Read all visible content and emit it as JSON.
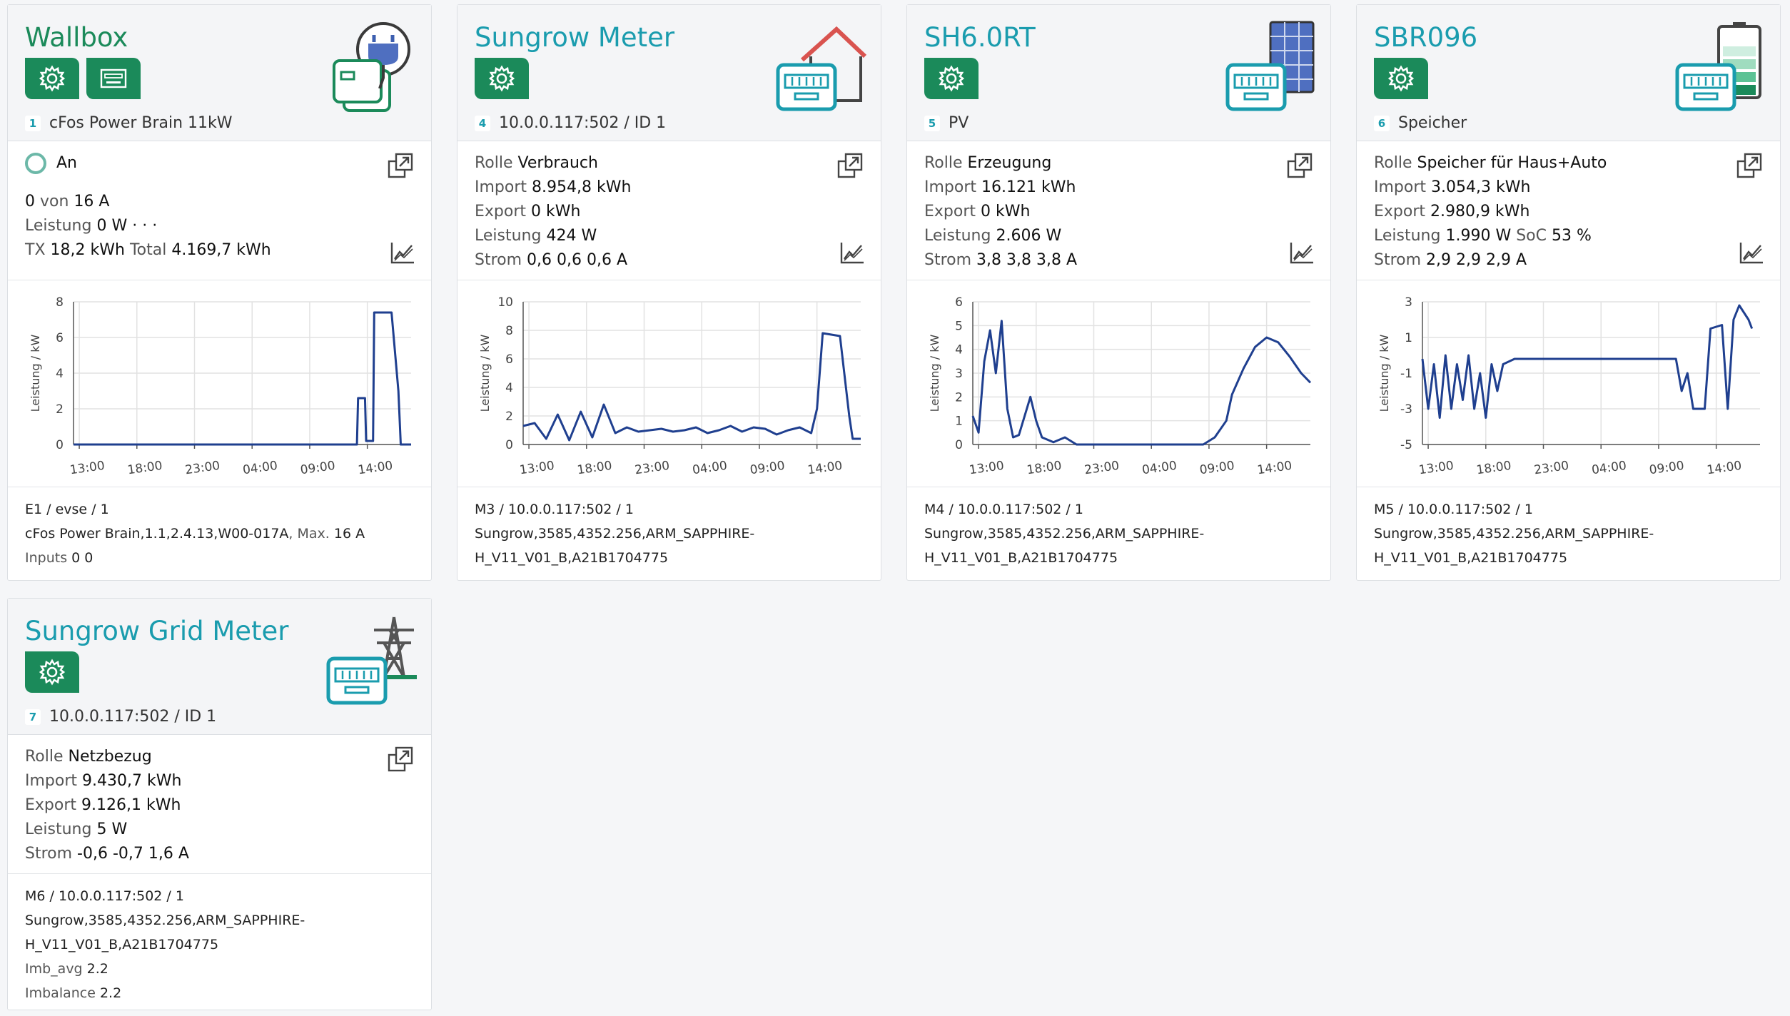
{
  "colors": {
    "teal": "#1a9cae",
    "green": "#1b8a5a",
    "line": "#1f3f8f",
    "red": "#d9534f"
  },
  "cards": [
    {
      "title": "Wallbox",
      "num": "1",
      "sub": "cFos Power Brain 11kW",
      "icon": "wallbox-plug-icon",
      "status": "An",
      "line1": [
        "0",
        "von",
        "16 A"
      ],
      "line2": [
        "Leistung",
        "0 W",
        "· · ·"
      ],
      "line3": [
        "TX",
        "18,2 kWh",
        "Total",
        "4.169,7 kWh"
      ],
      "foot1": "E1 / evse / 1",
      "foot2a": "cFos Power Brain,1.1,2.4.13,W00-017A",
      "foot2b": ", Max.",
      "foot2c": "16 A",
      "foot3a": "Inputs",
      "foot3b": "0 0",
      "chart_yticks": [
        "8",
        "6",
        "4",
        "2",
        "0"
      ]
    },
    {
      "title": "Sungrow Meter",
      "num": "4",
      "sub": "10.0.0.117:502 / ID 1",
      "icon": "house-meter-icon",
      "rows": [
        [
          "Rolle",
          "Verbrauch"
        ],
        [
          "Import",
          "8.954,8 kWh"
        ],
        [
          "Export",
          "0 kWh"
        ],
        [
          "Leistung",
          "424 W"
        ],
        [
          "Strom",
          "0,6 0,6 0,6 A"
        ]
      ],
      "foot1": "M3 / 10.0.0.117:502 / 1",
      "foot2": "Sungrow,3585,4352.256,ARM_SAPPHIRE-",
      "foot3": "H_V11_V01_B,A21B1704775",
      "chart_yticks": [
        "10",
        "8",
        "6",
        "4",
        "2",
        "0"
      ]
    },
    {
      "title": "SH6.0RT",
      "num": "5",
      "sub": "PV",
      "icon": "solar-panel-icon",
      "rows": [
        [
          "Rolle",
          "Erzeugung"
        ],
        [
          "Import",
          "16.121 kWh"
        ],
        [
          "Export",
          "0 kWh"
        ],
        [
          "Leistung",
          "2.606 W"
        ],
        [
          "Strom",
          "3,8 3,8 3,8 A"
        ]
      ],
      "foot1": "M4 / 10.0.0.117:502 / 1",
      "foot2": "Sungrow,3585,4352.256,ARM_SAPPHIRE-",
      "foot3": "H_V11_V01_B,A21B1704775",
      "chart_yticks": [
        "6",
        "5",
        "4",
        "3",
        "2",
        "1",
        "0"
      ]
    },
    {
      "title": "SBR096",
      "num": "6",
      "sub": "Speicher",
      "icon": "battery-icon",
      "rows": [
        [
          "Rolle",
          "Speicher für Haus+Auto"
        ],
        [
          "Import",
          "3.054,3 kWh"
        ],
        [
          "Export",
          "2.980,9 kWh"
        ],
        [
          "Leistung",
          "1.990 W",
          "SoC",
          "53 %"
        ],
        [
          "Strom",
          "2,9 2,9 2,9 A"
        ]
      ],
      "foot1": "M5 / 10.0.0.117:502 / 1",
      "foot2": "Sungrow,3585,4352.256,ARM_SAPPHIRE-",
      "foot3": "H_V11_V01_B,A21B1704775",
      "chart_yticks": [
        "3",
        "1",
        "-1",
        "-3",
        "-5"
      ]
    },
    {
      "title": "Sungrow Grid Meter",
      "num": "7",
      "sub": "10.0.0.117:502 / ID 1",
      "icon": "power-pylon-icon",
      "rows": [
        [
          "Rolle",
          "Netzbezug"
        ],
        [
          "Import",
          "9.430,7 kWh"
        ],
        [
          "Export",
          "9.126,1 kWh"
        ],
        [
          "Leistung",
          "5 W"
        ],
        [
          "Strom",
          "-0,6 -0,7 1,6 A"
        ]
      ],
      "foot1": "M6 / 10.0.0.117:502 / 1",
      "foot2": "Sungrow,3585,4352.256,ARM_SAPPHIRE-",
      "foot3": "H_V11_V01_B,A21B1704775",
      "foot4a": "Imb_avg",
      "foot4b": "2.2",
      "foot5a": "Imbalance",
      "foot5b": "2.2"
    }
  ],
  "chart_data": [
    {
      "type": "line",
      "ylabel": "Leistung / kW",
      "ylim": [
        0,
        8
      ],
      "x_ticks": [
        "13:00",
        "18:00",
        "23:00",
        "04:00",
        "09:00",
        "14:00"
      ],
      "x": [
        0,
        1.0,
        1.5,
        2.0,
        2.4,
        2.7,
        2.8,
        2.95,
        3.0
      ],
      "y_series_hours_note": "",
      "points": [
        [
          0,
          0
        ],
        [
          24.6,
          0
        ],
        [
          24.7,
          2.6
        ],
        [
          25.3,
          2.6
        ],
        [
          25.4,
          0.2
        ],
        [
          26.0,
          0.2
        ],
        [
          26.1,
          7.4
        ],
        [
          27.6,
          7.4
        ],
        [
          28.2,
          3
        ],
        [
          28.4,
          0
        ],
        [
          29.3,
          0
        ]
      ]
    },
    {
      "type": "line",
      "ylabel": "Leistung / kW",
      "ylim": [
        0,
        10
      ],
      "x_ticks": [
        "13:00",
        "18:00",
        "23:00",
        "04:00",
        "09:00",
        "14:00"
      ],
      "points": [
        [
          0,
          1.3
        ],
        [
          1,
          1.5
        ],
        [
          2,
          0.4
        ],
        [
          3,
          2.1
        ],
        [
          4,
          0.3
        ],
        [
          5,
          2.3
        ],
        [
          6,
          0.5
        ],
        [
          7,
          2.8
        ],
        [
          8,
          0.8
        ],
        [
          9,
          1.2
        ],
        [
          10,
          0.9
        ],
        [
          11,
          1.0
        ],
        [
          12,
          1.1
        ],
        [
          13,
          0.9
        ],
        [
          14,
          1.0
        ],
        [
          15,
          1.2
        ],
        [
          16,
          0.8
        ],
        [
          17,
          1.0
        ],
        [
          18,
          1.3
        ],
        [
          19,
          0.9
        ],
        [
          20,
          1.2
        ],
        [
          21,
          1.1
        ],
        [
          22,
          0.7
        ],
        [
          23,
          1.0
        ],
        [
          24,
          1.2
        ],
        [
          25,
          0.8
        ],
        [
          25.5,
          2.5
        ],
        [
          26,
          7.8
        ],
        [
          27.5,
          7.6
        ],
        [
          28.3,
          2.0
        ],
        [
          28.6,
          0.4
        ],
        [
          29.3,
          0.4
        ]
      ]
    },
    {
      "type": "line",
      "ylabel": "Leistung / kW",
      "ylim": [
        0,
        6
      ],
      "x_ticks": [
        "13:00",
        "18:00",
        "23:00",
        "04:00",
        "09:00",
        "14:00"
      ],
      "points": [
        [
          0,
          1.2
        ],
        [
          0.5,
          0.5
        ],
        [
          1,
          3.5
        ],
        [
          1.5,
          4.8
        ],
        [
          2,
          3.0
        ],
        [
          2.5,
          5.2
        ],
        [
          3,
          1.5
        ],
        [
          3.5,
          0.3
        ],
        [
          4,
          0.4
        ],
        [
          5,
          2.0
        ],
        [
          5.5,
          1.0
        ],
        [
          6,
          0.3
        ],
        [
          7,
          0.1
        ],
        [
          8,
          0.3
        ],
        [
          9,
          0
        ],
        [
          20,
          0
        ],
        [
          21,
          0.3
        ],
        [
          22,
          1.0
        ],
        [
          22.5,
          2.1
        ],
        [
          23.5,
          3.2
        ],
        [
          24.5,
          4.1
        ],
        [
          25.5,
          4.5
        ],
        [
          26.5,
          4.3
        ],
        [
          27.5,
          3.7
        ],
        [
          28.5,
          3.0
        ],
        [
          29.3,
          2.6
        ]
      ]
    },
    {
      "type": "line",
      "ylabel": "Leistung / kW",
      "ylim": [
        -5,
        3
      ],
      "x_ticks": [
        "13:00",
        "18:00",
        "23:00",
        "04:00",
        "09:00",
        "14:00"
      ],
      "points": [
        [
          0,
          -0.2
        ],
        [
          0.5,
          -3
        ],
        [
          1,
          -0.5
        ],
        [
          1.5,
          -3.5
        ],
        [
          2,
          0
        ],
        [
          2.5,
          -3
        ],
        [
          3,
          -0.5
        ],
        [
          3.5,
          -2.5
        ],
        [
          4,
          0
        ],
        [
          4.5,
          -3
        ],
        [
          5,
          -1
        ],
        [
          5.5,
          -3.5
        ],
        [
          6,
          -0.5
        ],
        [
          6.5,
          -2
        ],
        [
          7,
          -0.5
        ],
        [
          8,
          -0.2
        ],
        [
          22,
          -0.2
        ],
        [
          22.5,
          -2
        ],
        [
          23,
          -1
        ],
        [
          23.5,
          -3
        ],
        [
          24.5,
          -3
        ],
        [
          25,
          1.5
        ],
        [
          26,
          1.7
        ],
        [
          26.5,
          -3
        ],
        [
          27,
          2
        ],
        [
          27.5,
          2.8
        ],
        [
          28.3,
          2.0
        ],
        [
          28.6,
          1.5
        ]
      ]
    }
  ]
}
